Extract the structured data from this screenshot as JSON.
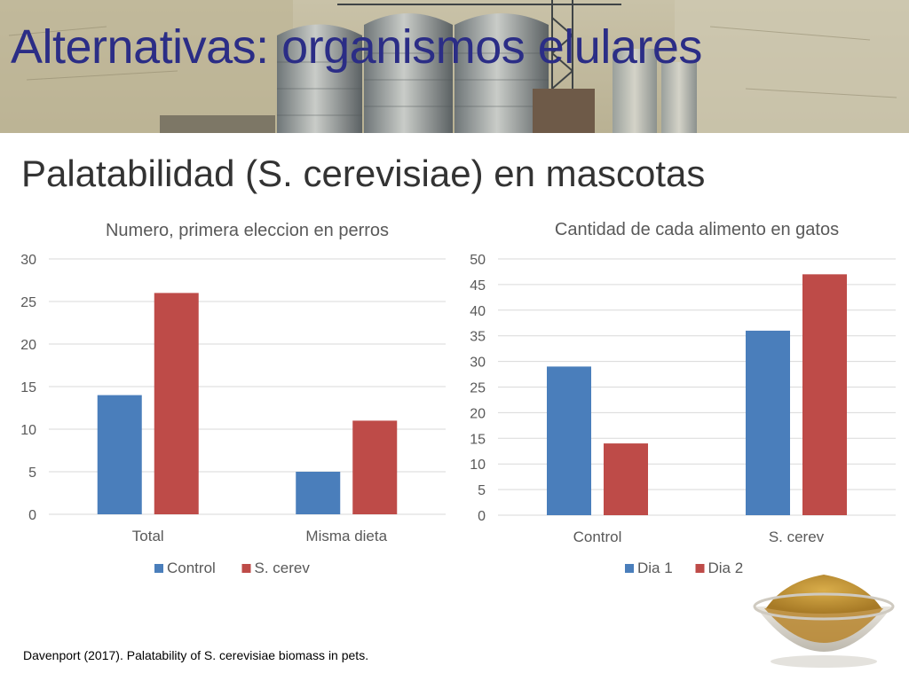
{
  "title": "Alternativas: organismos elulares",
  "subtitle": "Palatabilidad (S. cerevisiae) en mascotas",
  "citation": "Davenport (2017). Palatability of S. cerevisiae biomass in pets.",
  "colors": {
    "title": "#2b2d86",
    "series1": "#4a7ebb",
    "series2": "#be4b48",
    "grid": "#d9d9d9",
    "axis_text": "#595959"
  },
  "chart_data": [
    {
      "type": "bar",
      "title": "Numero, primera eleccion en perros",
      "categories": [
        "Total",
        "Misma dieta"
      ],
      "series": [
        {
          "name": "Control",
          "values": [
            14,
            5
          ]
        },
        {
          "name": "S. cerev",
          "values": [
            26,
            11
          ]
        }
      ],
      "ylim": [
        0,
        30
      ],
      "yticks": [
        0,
        5,
        10,
        15,
        20,
        25,
        30
      ],
      "grid": true,
      "legend": "bottom"
    },
    {
      "type": "bar",
      "title": "Cantidad de cada alimento en gatos",
      "categories": [
        "Control",
        "S. cerev"
      ],
      "series": [
        {
          "name": "Dia 1",
          "values": [
            29,
            36
          ]
        },
        {
          "name": "Dia 2",
          "values": [
            14,
            47
          ]
        }
      ],
      "ylim": [
        0,
        50
      ],
      "yticks": [
        0,
        5,
        10,
        15,
        20,
        25,
        30,
        35,
        40,
        45,
        50
      ],
      "grid": true,
      "legend": "bottom"
    }
  ]
}
